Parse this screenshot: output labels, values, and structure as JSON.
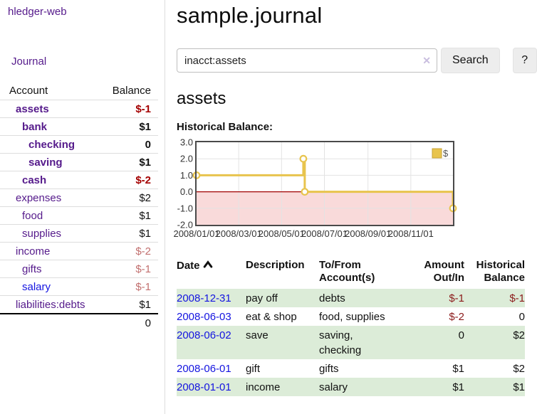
{
  "colors": {
    "visited_link_purple": "#551A8B",
    "unvisited_link_blue": "#1414e0",
    "negative_strong_red": "#a40000",
    "negative_muted_rose": "#c2706f",
    "register_negative_red": "#8b1a1a",
    "row_green": "#dcecd8",
    "chart_line_gold": "#e8c44d",
    "chart_negative_fill": "#f9dada",
    "chart_zero_line_red": "#a00000"
  },
  "sidebar": {
    "brand": "hledger-web",
    "nav": {
      "journal": "Journal"
    },
    "accounts_table": {
      "headers": {
        "account": "Account",
        "balance": "Balance"
      },
      "rows": [
        {
          "name": "assets",
          "depth": 1,
          "bold": true,
          "visited": true,
          "balance": "$-1"
        },
        {
          "name": "bank",
          "depth": 2,
          "bold": true,
          "visited": true,
          "balance": "$1"
        },
        {
          "name": "checking",
          "depth": 3,
          "bold": true,
          "visited": true,
          "balance": "0"
        },
        {
          "name": "saving",
          "depth": 3,
          "bold": true,
          "visited": true,
          "balance": "$1"
        },
        {
          "name": "cash",
          "depth": 2,
          "bold": true,
          "visited": true,
          "balance": "$-2"
        },
        {
          "name": "expenses",
          "depth": 1,
          "bold": false,
          "visited": true,
          "balance": "$2"
        },
        {
          "name": "food",
          "depth": 2,
          "bold": false,
          "visited": true,
          "balance": "$1"
        },
        {
          "name": "supplies",
          "depth": 2,
          "bold": false,
          "visited": true,
          "balance": "$1"
        },
        {
          "name": "income",
          "depth": 1,
          "bold": false,
          "visited": true,
          "balance": "$-2"
        },
        {
          "name": "gifts",
          "depth": 2,
          "bold": false,
          "visited": true,
          "balance": "$-1"
        },
        {
          "name": "salary",
          "depth": 2,
          "bold": false,
          "visited": false,
          "balance": "$-1"
        },
        {
          "name": "liabilities:debts",
          "depth": 1,
          "bold": false,
          "visited": true,
          "balance": "$1"
        }
      ],
      "total": "0"
    }
  },
  "header": {
    "title": "sample.journal"
  },
  "search": {
    "value": "inacct:assets",
    "clear_icon": "✕",
    "button": "Search",
    "help_button": "?"
  },
  "account_page": {
    "heading": "assets",
    "chart_label": "Historical Balance:"
  },
  "chart_data": {
    "type": "line",
    "style": "step-after",
    "series": [
      {
        "name": "$",
        "x": [
          "2008-01-01",
          "2008-06-01",
          "2008-06-03",
          "2008-12-31"
        ],
        "y": [
          1,
          2,
          0,
          -1
        ]
      }
    ],
    "xrange": [
      "2008-01-01",
      "2008-12-31"
    ],
    "ylim": [
      -2,
      3
    ],
    "yticks": [
      "3.0",
      "2.0",
      "1.0",
      "0.0",
      "-1.0",
      "-2.0"
    ],
    "ytick_values": [
      3,
      2,
      1,
      0,
      -1,
      -2
    ],
    "xticks": [
      "2008/01/01",
      "2008/03/01",
      "2008/05/01",
      "2008/07/01",
      "2008/09/01",
      "2008/11/01"
    ],
    "legend": "$",
    "legend_position": "top-right",
    "grid": true,
    "negative_region_shaded": true
  },
  "register_table": {
    "headers": {
      "date": "Date",
      "description": "Description",
      "accounts": "To/From Account(s)",
      "amount": "Amount Out/In",
      "balance": "Historical Balance"
    },
    "rows": [
      {
        "date": "2008-12-31",
        "description": "pay off",
        "accounts": "debts",
        "amount": "$-1",
        "balance": "$-1"
      },
      {
        "date": "2008-06-03",
        "description": "eat & shop",
        "accounts": "food, supplies",
        "amount": "$-2",
        "balance": "0"
      },
      {
        "date": "2008-06-02",
        "description": "save",
        "accounts": "saving, checking",
        "amount": "0",
        "balance": "$2"
      },
      {
        "date": "2008-06-01",
        "description": "gift",
        "accounts": "gifts",
        "amount": "$1",
        "balance": "$2"
      },
      {
        "date": "2008-01-01",
        "description": "income",
        "accounts": "salary",
        "amount": "$1",
        "balance": "$1"
      }
    ]
  }
}
